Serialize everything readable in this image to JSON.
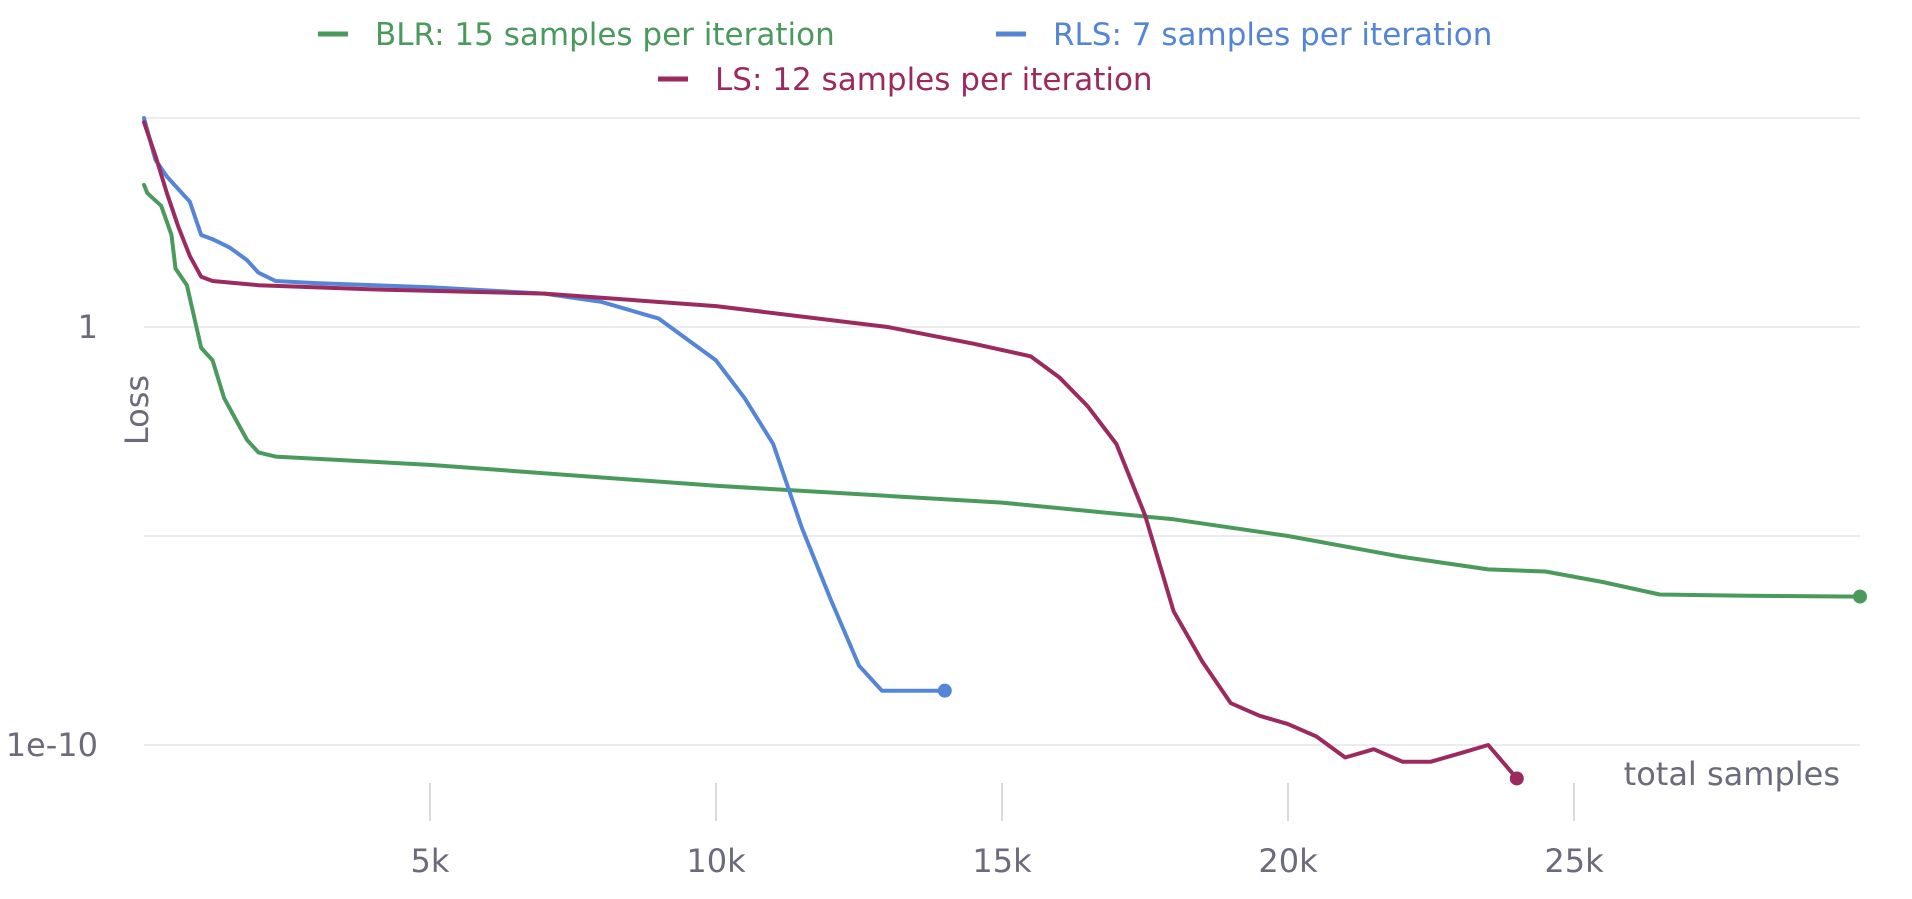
{
  "chart_data": {
    "type": "line",
    "title": "",
    "xlabel": "total samples",
    "ylabel": "Loss",
    "xlim": [
      0,
      30000
    ],
    "ylim_log10": [
      -10,
      5
    ],
    "yscale": "log",
    "x_ticks": [
      5000,
      10000,
      15000,
      20000,
      25000
    ],
    "x_tick_labels": [
      "5k",
      "10k",
      "15k",
      "20k",
      "25k"
    ],
    "y_tick_values_log10": [
      -10,
      0
    ],
    "y_tick_labels": [
      "1e-10",
      "1"
    ],
    "grid": true,
    "legend_position": "top",
    "series": [
      {
        "name": "BLR: 15 samples per iteration",
        "color": "#4a9a5e",
        "points_log10": [
          [
            0,
            3.4
          ],
          [
            60,
            3.2
          ],
          [
            300,
            2.9
          ],
          [
            480,
            2.2
          ],
          [
            550,
            1.4
          ],
          [
            750,
            1.0
          ],
          [
            1000,
            -0.5
          ],
          [
            1200,
            -0.8
          ],
          [
            1400,
            -1.7
          ],
          [
            1600,
            -2.2
          ],
          [
            1800,
            -2.7
          ],
          [
            2000,
            -3.0
          ],
          [
            2300,
            -3.1
          ],
          [
            3000,
            -3.15
          ],
          [
            5000,
            -3.3
          ],
          [
            10000,
            -3.8
          ],
          [
            15000,
            -4.2
          ],
          [
            18000,
            -4.6
          ],
          [
            20000,
            -5.0
          ],
          [
            22000,
            -5.5
          ],
          [
            23500,
            -5.8
          ],
          [
            24500,
            -5.85
          ],
          [
            25500,
            -6.1
          ],
          [
            26500,
            -6.4
          ],
          [
            28000,
            -6.43
          ],
          [
            30000,
            -6.45
          ]
        ]
      },
      {
        "name": "RLS: 7 samples per iteration",
        "color": "#5585d6",
        "points_log10": [
          [
            0,
            5.0
          ],
          [
            200,
            4.0
          ],
          [
            400,
            3.6
          ],
          [
            600,
            3.3
          ],
          [
            800,
            3.0
          ],
          [
            1000,
            2.2
          ],
          [
            1200,
            2.1
          ],
          [
            1500,
            1.9
          ],
          [
            1800,
            1.6
          ],
          [
            2000,
            1.3
          ],
          [
            2300,
            1.1
          ],
          [
            3000,
            1.05
          ],
          [
            5000,
            0.95
          ],
          [
            7000,
            0.8
          ],
          [
            8000,
            0.6
          ],
          [
            9000,
            0.2
          ],
          [
            9500,
            -0.3
          ],
          [
            10000,
            -0.8
          ],
          [
            10500,
            -1.7
          ],
          [
            11000,
            -2.8
          ],
          [
            11500,
            -4.8
          ],
          [
            12000,
            -6.5
          ],
          [
            12500,
            -8.1
          ],
          [
            12900,
            -8.7
          ],
          [
            13500,
            -8.7
          ],
          [
            14000,
            -8.7
          ]
        ]
      },
      {
        "name": "LS: 12 samples per iteration",
        "color": "#9b2a5e",
        "points_log10": [
          [
            0,
            4.9
          ],
          [
            200,
            4.1
          ],
          [
            400,
            3.2
          ],
          [
            600,
            2.4
          ],
          [
            800,
            1.7
          ],
          [
            1000,
            1.2
          ],
          [
            1200,
            1.1
          ],
          [
            2000,
            1.0
          ],
          [
            4000,
            0.9
          ],
          [
            7000,
            0.8
          ],
          [
            10000,
            0.5
          ],
          [
            13000,
            0.0
          ],
          [
            14500,
            -0.4
          ],
          [
            15500,
            -0.7
          ],
          [
            16000,
            -1.2
          ],
          [
            16500,
            -1.9
          ],
          [
            17000,
            -2.8
          ],
          [
            17500,
            -4.5
          ],
          [
            18000,
            -6.8
          ],
          [
            18500,
            -8.0
          ],
          [
            19000,
            -9.0
          ],
          [
            19500,
            -9.3
          ],
          [
            20000,
            -9.5
          ],
          [
            20500,
            -9.8
          ],
          [
            21000,
            -10.3
          ],
          [
            21500,
            -10.1
          ],
          [
            22000,
            -10.4
          ],
          [
            22500,
            -10.4
          ],
          [
            23000,
            -10.2
          ],
          [
            23500,
            -10.0
          ],
          [
            24000,
            -10.8
          ]
        ]
      }
    ]
  }
}
